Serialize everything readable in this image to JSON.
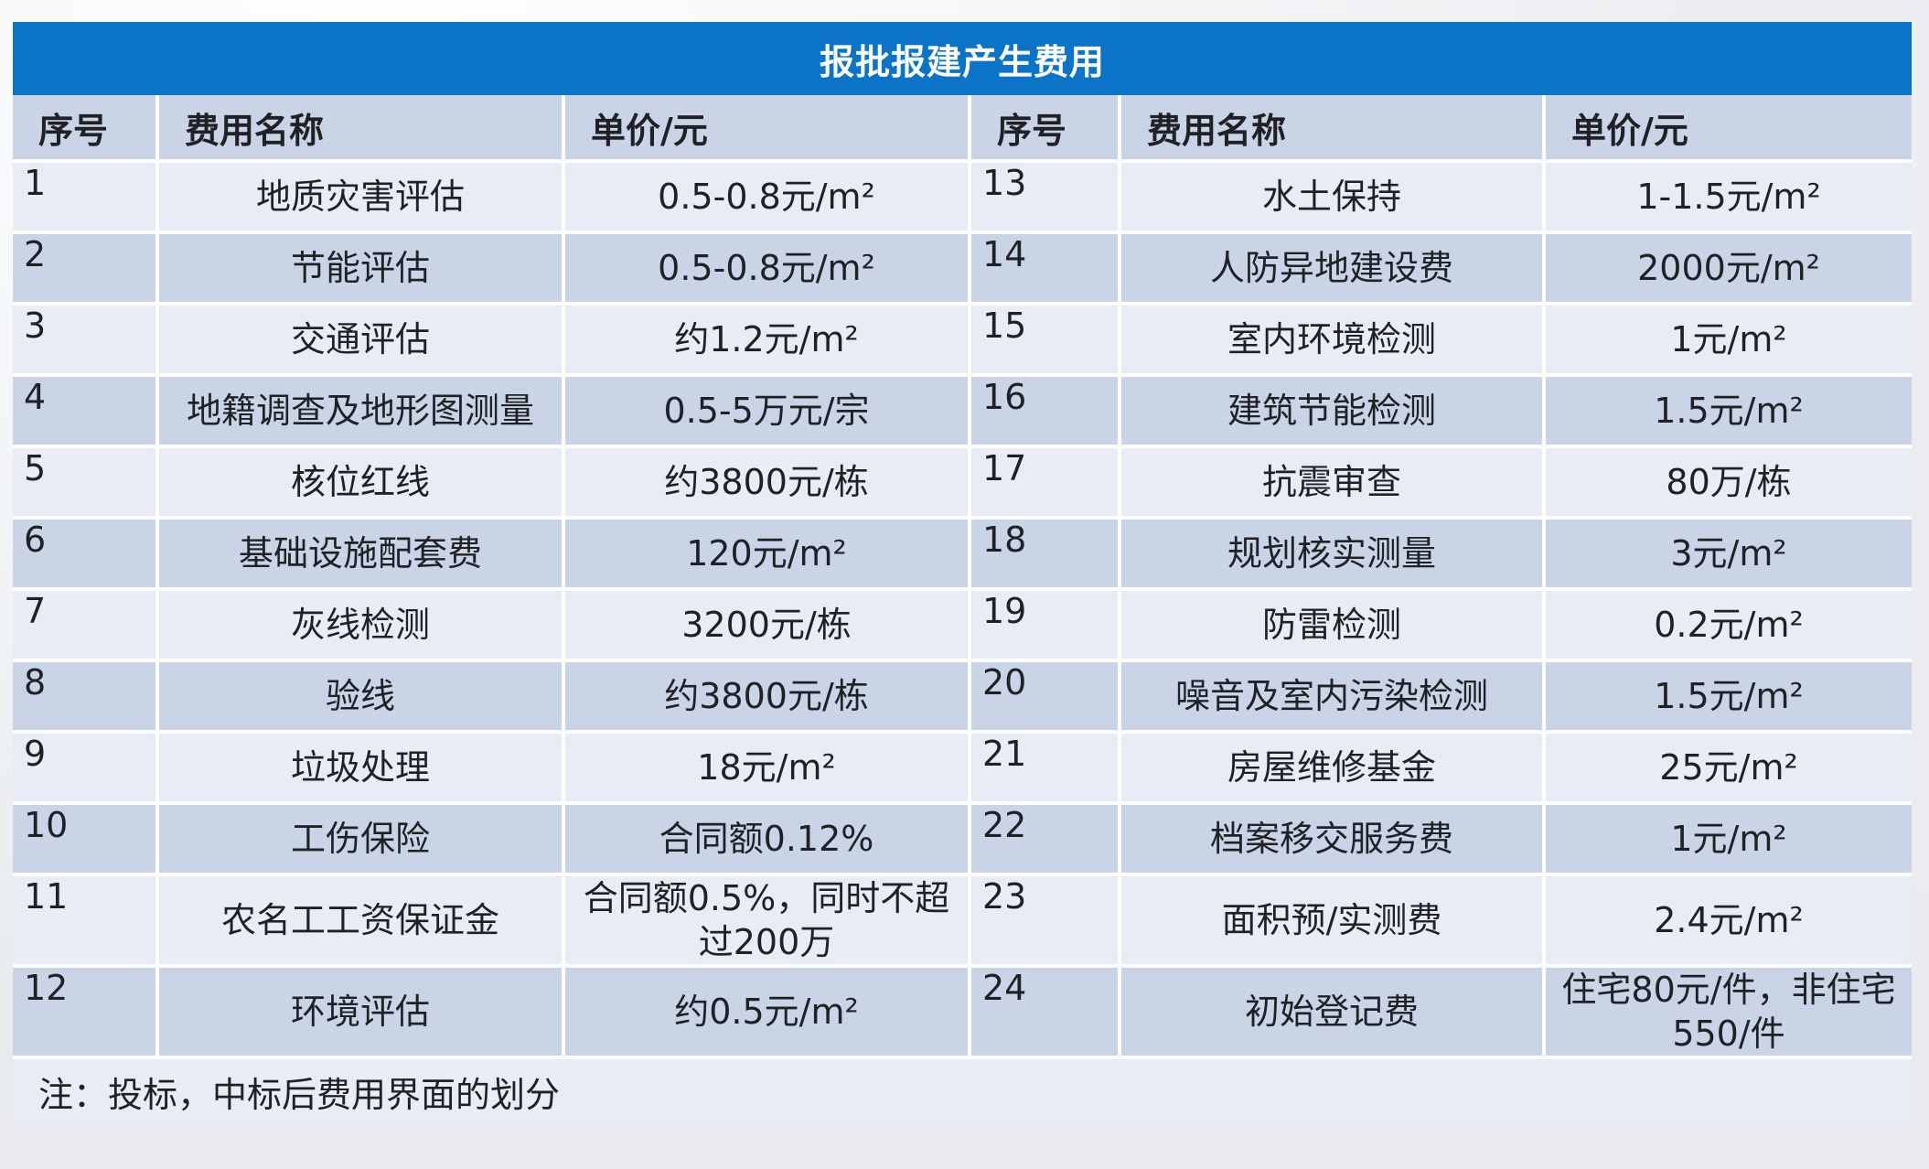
{
  "title": "报批报建产生费用",
  "headers": [
    "序号",
    "费用名称",
    "单价/元",
    "序号",
    "费用名称",
    "单价/元"
  ],
  "rows": [
    {
      "no1": "1",
      "name1": "地质灾害评估",
      "price1": "0.5-0.8元/m²",
      "no2": "13",
      "name2": "水土保持",
      "price2": "1-1.5元/m²"
    },
    {
      "no1": "2",
      "name1": "节能评估",
      "price1": "0.5-0.8元/m²",
      "no2": "14",
      "name2": "人防异地建设费",
      "price2": "2000元/m²"
    },
    {
      "no1": "3",
      "name1": "交通评估",
      "price1": "约1.2元/m²",
      "no2": "15",
      "name2": "室内环境检测",
      "price2": "1元/m²"
    },
    {
      "no1": "4",
      "name1": "地籍调查及地形图测量",
      "price1": "0.5-5万元/宗",
      "no2": "16",
      "name2": "建筑节能检测",
      "price2": "1.5元/m²"
    },
    {
      "no1": "5",
      "name1": "核位红线",
      "price1": "约3800元/栋",
      "no2": "17",
      "name2": "抗震审查",
      "price2": "80万/栋"
    },
    {
      "no1": "6",
      "name1": "基础设施配套费",
      "price1": "120元/m²",
      "no2": "18",
      "name2": "规划核实测量",
      "price2": "3元/m²"
    },
    {
      "no1": "7",
      "name1": "灰线检测",
      "price1": "3200元/栋",
      "no2": "19",
      "name2": "防雷检测",
      "price2": "0.2元/m²"
    },
    {
      "no1": "8",
      "name1": "验线",
      "price1": "约3800元/栋",
      "no2": "20",
      "name2": "噪音及室内污染检测",
      "price2": "1.5元/m²"
    },
    {
      "no1": "9",
      "name1": "垃圾处理",
      "price1": "18元/m²",
      "no2": "21",
      "name2": "房屋维修基金",
      "price2": "25元/m²"
    },
    {
      "no1": "10",
      "name1": "工伤保险",
      "price1": "合同额0.12%",
      "no2": "22",
      "name2": "档案移交服务费",
      "price2": "1元/m²"
    },
    {
      "no1": "11",
      "name1": "农名工工资保证金",
      "price1": "合同额0.5%，同时不超过200万",
      "no2": "23",
      "name2": "面积预/实测费",
      "price2": "2.4元/m²"
    },
    {
      "no1": "12",
      "name1": "环境评估",
      "price1": "约0.5元/m²",
      "no2": "24",
      "name2": "初始登记费",
      "price2": "住宅80元/件，非住宅550/件"
    }
  ],
  "note": "注：投标，中标后费用界面的划分",
  "colors": {
    "banner": "#0b73c8",
    "header_row": "#c9d4e7",
    "row_light": "#e8ecf4",
    "row_dark": "#c9d4e7"
  }
}
